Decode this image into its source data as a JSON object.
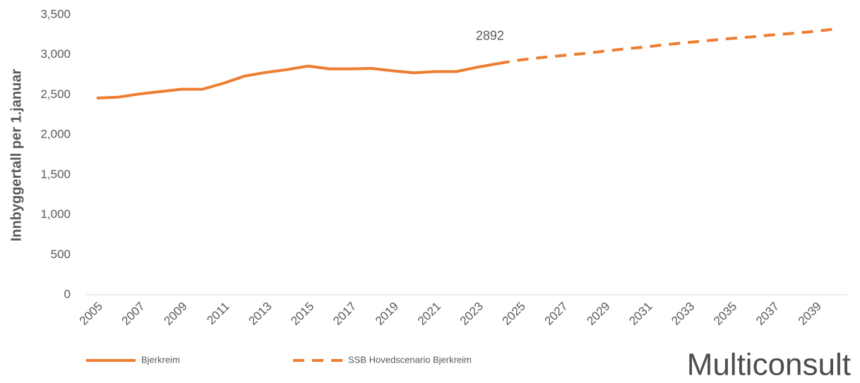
{
  "chart_data": {
    "type": "line",
    "y_label": "Innbyggertall per 1.januar",
    "categories": [
      "2005",
      null,
      "2007",
      null,
      "2009",
      null,
      "2011",
      null,
      "2013",
      null,
      "2015",
      null,
      "2017",
      null,
      "2019",
      null,
      "2021",
      null,
      "2023",
      null,
      "2025",
      null,
      "2027",
      null,
      "2029",
      null,
      "2031",
      null,
      "2033",
      null,
      "2035",
      null,
      "2037",
      null,
      "2039",
      null
    ],
    "series": [
      {
        "name": "Bjerkreim",
        "color": "#ed7d31",
        "dashed": false,
        "values": [
          2460,
          2470,
          2510,
          2540,
          2570,
          2570,
          2645,
          2735,
          2780,
          2815,
          2860,
          2825,
          2825,
          2830,
          2800,
          2775,
          2790,
          2790,
          2845,
          2892,
          null,
          null,
          null,
          null,
          null,
          null,
          null,
          null,
          null,
          null,
          null,
          null,
          null,
          null,
          null,
          null
        ]
      },
      {
        "name": "SSB Hovedscenario Bjerkreim",
        "color": "#ed7d31",
        "dashed": true,
        "values": [
          null,
          null,
          null,
          null,
          null,
          null,
          null,
          null,
          null,
          null,
          null,
          null,
          null,
          null,
          null,
          null,
          null,
          null,
          null,
          2892,
          2935,
          2965,
          2990,
          3015,
          3045,
          3075,
          3100,
          3130,
          3155,
          3180,
          3205,
          3225,
          3250,
          3270,
          3295,
          3325
        ]
      }
    ],
    "ylim": [
      0,
      3500
    ],
    "yticks": [
      0,
      500,
      {
        "value": 1000,
        "label": "1,000"
      },
      {
        "value": 1500,
        "label": "1,500"
      },
      {
        "value": 2000,
        "label": "2,000"
      },
      {
        "value": 2500,
        "label": "2,500"
      },
      {
        "value": 3000,
        "label": "3,000"
      },
      {
        "value": 3500,
        "label": "3,500"
      }
    ],
    "grid": false,
    "legend": "bottom",
    "logo": "Multiconsult"
  }
}
